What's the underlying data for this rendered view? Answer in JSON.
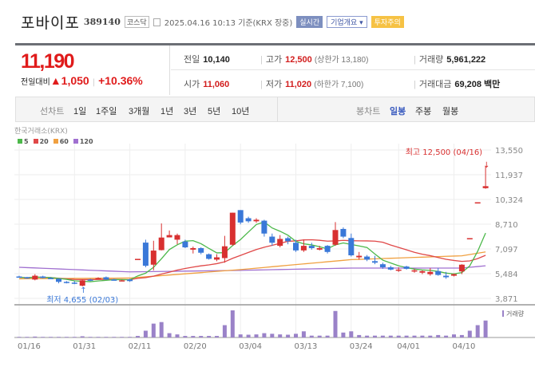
{
  "header": {
    "name": "포바이포",
    "code": "389140",
    "market": "코스닥",
    "timestamp": "2025.04.16 10:13 기준(KRX 장중)",
    "realtime_btn": "실시간",
    "company_btn": "기업개요",
    "warning_badge": "투자주의"
  },
  "price": {
    "current": "11,190",
    "change_label": "전일대비",
    "change": "▲1,050",
    "change_pct": "+10.36%"
  },
  "stats": {
    "prev_label": "전일",
    "prev": "10,140",
    "open_label": "시가",
    "open": "11,060",
    "high_label": "고가",
    "high": "12,500",
    "upper_limit": "(상한가 13,180)",
    "low_label": "저가",
    "low": "11,020",
    "lower_limit": "(하한가 7,100)",
    "volume_label": "거래량",
    "volume": "5,961,222",
    "amount_label": "거래대금",
    "amount": "69,208 백만"
  },
  "tabs": {
    "line_label": "선차트",
    "line": [
      "1일",
      "1주일",
      "3개월",
      "1년",
      "3년",
      "5년",
      "10년"
    ],
    "candle_label": "봉차트",
    "candle": [
      "일봉",
      "주봉",
      "월봉"
    ],
    "active": "일봉"
  },
  "chart_data": {
    "type": "candlestick",
    "source": "한국거래소(KRX)",
    "legend": [
      {
        "name": "5",
        "color": "#4cb84a"
      },
      {
        "name": "20",
        "color": "#e04848"
      },
      {
        "name": "60",
        "color": "#f0a040"
      },
      {
        "name": "120",
        "color": "#a070d0"
      }
    ],
    "ylim": [
      3871,
      13550
    ],
    "yticks": [
      "13,550",
      "11,937",
      "10,324",
      "8,710",
      "7,097",
      "5,484",
      "3,871"
    ],
    "ytick_values": [
      13550,
      11937,
      10324,
      8710,
      7097,
      5484,
      3871
    ],
    "xticks": [
      {
        "label": "01/16",
        "index": 0
      },
      {
        "label": "01/31",
        "index": 7
      },
      {
        "label": "02/11",
        "index": 14
      },
      {
        "label": "02/20",
        "index": 21
      },
      {
        "label": "03/04",
        "index": 28
      },
      {
        "label": "03/13",
        "index": 35
      },
      {
        "label": "03/24",
        "index": 42
      },
      {
        "label": "04/01",
        "index": 48
      },
      {
        "label": "04/10",
        "index": 55
      }
    ],
    "high_annotation": "최고 12,500 (04/16)",
    "low_annotation": "최저 4,655 (02/03)",
    "low_index": 8,
    "volume_label": "거래량",
    "ohlc": [
      [
        5300,
        5350,
        5250,
        5250
      ],
      [
        5250,
        5280,
        5150,
        5180
      ],
      [
        5100,
        5450,
        5050,
        5350
      ],
      [
        5300,
        5350,
        5180,
        5200
      ],
      [
        5200,
        5250,
        5150,
        5180
      ],
      [
        5150,
        5180,
        4850,
        4950
      ],
      [
        4950,
        5000,
        4850,
        4900
      ],
      [
        4900,
        5000,
        4800,
        4850
      ],
      [
        4700,
        5100,
        4655,
        5050
      ],
      [
        5100,
        5150,
        5000,
        5050
      ],
      [
        5150,
        5250,
        5100,
        5200
      ],
      [
        5250,
        5300,
        5080,
        5100
      ],
      [
        5100,
        5150,
        5050,
        5080
      ],
      [
        5050,
        5100,
        5000,
        5050
      ],
      [
        5100,
        5150,
        4950,
        5000
      ],
      [
        6450,
        6450,
        6450,
        6450
      ],
      [
        7510,
        7700,
        5900,
        6000
      ],
      [
        6070,
        7630,
        5700,
        6990
      ],
      [
        7020,
        8760,
        7000,
        7840
      ],
      [
        7850,
        8300,
        7850,
        8000
      ],
      [
        7700,
        8100,
        7400,
        8000
      ],
      [
        7580,
        7700,
        7150,
        7200
      ],
      [
        7050,
        7250,
        6800,
        7150
      ],
      [
        7150,
        7200,
        6750,
        6850
      ],
      [
        6750,
        6800,
        6400,
        6450
      ],
      [
        6400,
        6750,
        6300,
        6550
      ],
      [
        6500,
        7950,
        6200,
        7270
      ],
      [
        7370,
        9460,
        7300,
        9460
      ],
      [
        9630,
        9630,
        8700,
        8820
      ],
      [
        9100,
        9200,
        8800,
        8900
      ],
      [
        8900,
        9100,
        8800,
        9000
      ],
      [
        8940,
        9000,
        7900,
        8100
      ],
      [
        7900,
        8100,
        7300,
        7500
      ],
      [
        7300,
        8000,
        7200,
        7750
      ],
      [
        7800,
        7900,
        7400,
        7600
      ],
      [
        7500,
        7700,
        6900,
        7000
      ],
      [
        7000,
        7700,
        6900,
        7300
      ],
      [
        7300,
        7500,
        7050,
        7150
      ],
      [
        7050,
        7300,
        7000,
        7150
      ],
      [
        7300,
        7350,
        6800,
        6900
      ],
      [
        7370,
        8850,
        7300,
        8330
      ],
      [
        8400,
        8500,
        7800,
        7900
      ],
      [
        7810,
        8100,
        6600,
        6680
      ],
      [
        6550,
        6900,
        6400,
        6650
      ],
      [
        6600,
        6700,
        6300,
        6400
      ],
      [
        6300,
        6650,
        6100,
        6200
      ],
      [
        6100,
        6200,
        5800,
        5900
      ],
      [
        5900,
        6000,
        5700,
        5750
      ],
      [
        5700,
        5900,
        5600,
        5750
      ],
      [
        5950,
        6000,
        5750,
        5800
      ],
      [
        5650,
        5800,
        5550,
        5700
      ],
      [
        5550,
        5700,
        5450,
        5650
      ],
      [
        5450,
        5850,
        5350,
        5600
      ],
      [
        5650,
        5850,
        5350,
        5400
      ],
      [
        5350,
        5600,
        5150,
        5250
      ],
      [
        5350,
        5500,
        5300,
        5450
      ],
      [
        5630,
        6100,
        5450,
        6070
      ],
      [
        7800,
        7800,
        7800,
        7800
      ],
      [
        10140,
        10140,
        10140,
        10140
      ],
      [
        11060,
        12500,
        11020,
        11190
      ]
    ],
    "volume": [
      2,
      2,
      3,
      2,
      2,
      2,
      2,
      2,
      4,
      2,
      2,
      2,
      2,
      2,
      2,
      5,
      22,
      45,
      50,
      14,
      10,
      5,
      5,
      5,
      5,
      5,
      40,
      88,
      10,
      9,
      10,
      14,
      12,
      10,
      9,
      12,
      20,
      6,
      6,
      6,
      86,
      16,
      20,
      8,
      6,
      6,
      6,
      6,
      6,
      6,
      6,
      6,
      6,
      8,
      6,
      10,
      8,
      22,
      40,
      55
    ],
    "ma60": [
      [
        0,
        5150
      ],
      [
        14,
        5200
      ],
      [
        28,
        5750
      ],
      [
        42,
        6400
      ],
      [
        56,
        6650
      ],
      [
        59,
        6900
      ]
    ],
    "ma120": [
      [
        0,
        5900
      ],
      [
        14,
        5600
      ],
      [
        28,
        5700
      ],
      [
        42,
        5850
      ],
      [
        56,
        5850
      ],
      [
        59,
        6000
      ]
    ]
  }
}
